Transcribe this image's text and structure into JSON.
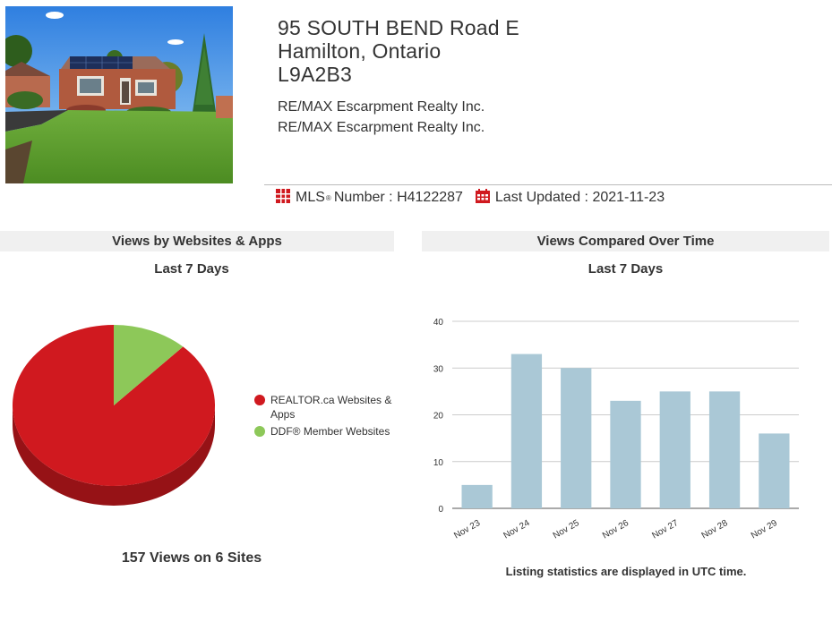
{
  "listing": {
    "address_line1": "95 SOUTH BEND Road E",
    "address_line2": "Hamilton, Ontario",
    "postal_code": "L9A2B3",
    "brokerage_1": "RE/MAX Escarpment Realty Inc.",
    "brokerage_2": "RE/MAX Escarpment Realty Inc.",
    "mls_label": "MLS",
    "mls_reg": "®",
    "mls_suffix": "Number :",
    "mls_number": "H4122287",
    "updated_label": "Last Updated :",
    "updated_date": "2021-11-23",
    "icons": {
      "mls": "mls-flag-icon",
      "updated": "calendar-icon"
    },
    "photo_icon": "house-photo"
  },
  "left_panel": {
    "title": "Views by Websites & Apps",
    "subtitle": "Last 7 Days",
    "total": "157 Views on 6 Sites"
  },
  "right_panel": {
    "title": "Views Compared Over Time",
    "subtitle": "Last 7 Days",
    "footnote": "Listing statistics are displayed in UTC time."
  },
  "chart_data": [
    {
      "type": "pie",
      "labels": [
        "REALTOR.ca Websites & Apps",
        "DDF® Member Websites"
      ],
      "values": [
        88,
        12
      ],
      "colors": [
        "#d0191f",
        "#8dc859"
      ],
      "legend_position": "right",
      "style": "3d"
    },
    {
      "type": "bar",
      "categories": [
        "Nov 23",
        "Nov 24",
        "Nov 25",
        "Nov 26",
        "Nov 27",
        "Nov 28",
        "Nov 29"
      ],
      "values": [
        5,
        33,
        30,
        23,
        25,
        25,
        16
      ],
      "yticks": [
        0,
        10,
        20,
        30,
        40
      ],
      "ylim": [
        0,
        40
      ],
      "grid": true,
      "color": "#aac8d6"
    }
  ],
  "colors": {
    "accent_red": "#d0191f",
    "panel_bg": "#f0f0f0",
    "bar": "#aac8d6"
  }
}
